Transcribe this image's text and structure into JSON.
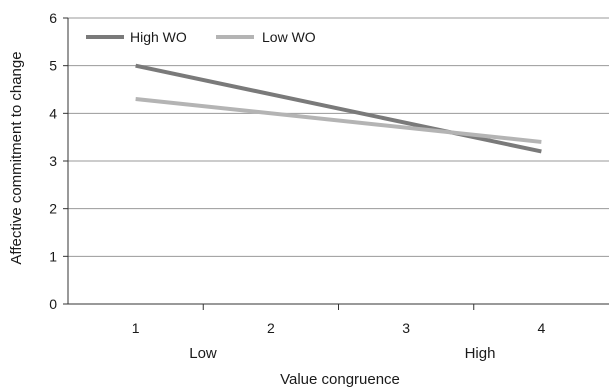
{
  "chart_data": {
    "type": "line",
    "x": [
      1,
      2,
      3,
      4
    ],
    "x_tick_labels": [
      "1",
      "2",
      "3",
      "4"
    ],
    "x_band_labels": [
      "Low",
      "High"
    ],
    "xlabel": "Value congruence",
    "ylabel": "Affective commitment to change",
    "ylim": [
      0,
      6
    ],
    "y_ticks": [
      0,
      1,
      2,
      3,
      4,
      5,
      6
    ],
    "grid": "horizontal",
    "legend_position": "top-left",
    "series": [
      {
        "name": "High WO",
        "x": [
          1,
          4
        ],
        "values": [
          5.0,
          3.2
        ],
        "color": "#7a7a7a"
      },
      {
        "name": "Low WO",
        "x": [
          1,
          4
        ],
        "values": [
          4.3,
          3.4
        ],
        "color": "#b4b4b4"
      }
    ]
  }
}
